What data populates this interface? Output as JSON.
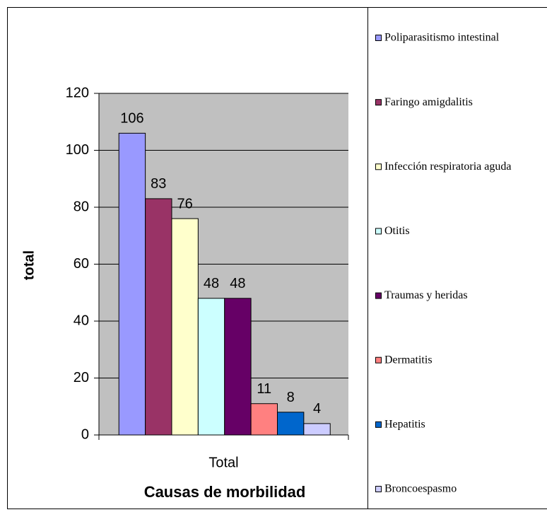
{
  "chart_data": {
    "type": "bar",
    "categories": [
      "Total"
    ],
    "series": [
      {
        "name": "Poliparasitismo intestinal",
        "color": "#9999ff",
        "values": [
          106
        ]
      },
      {
        "name": "Faringo amigdalitis",
        "color": "#993366",
        "values": [
          83
        ]
      },
      {
        "name": "Infección respiratoria aguda",
        "color": "#ffffcc",
        "values": [
          76
        ]
      },
      {
        "name": "Otitis",
        "color": "#ccffff",
        "values": [
          48
        ]
      },
      {
        "name": "Traumas y heridas",
        "color": "#660066",
        "values": [
          48
        ]
      },
      {
        "name": "Dermatitis",
        "color": "#ff8080",
        "values": [
          11
        ]
      },
      {
        "name": "Hepatitis",
        "color": "#0066cc",
        "values": [
          8
        ]
      },
      {
        "name": "Broncoespasmo",
        "color": "#ccccff",
        "values": [
          4
        ]
      }
    ],
    "xlabel": "Causas de morbilidad",
    "ylabel": "total",
    "ylim": [
      0,
      120
    ],
    "yticks": [
      0,
      20,
      40,
      60,
      80,
      100,
      120
    ],
    "grid": true,
    "legend": "right",
    "plot_background": "#c0c0c0"
  }
}
